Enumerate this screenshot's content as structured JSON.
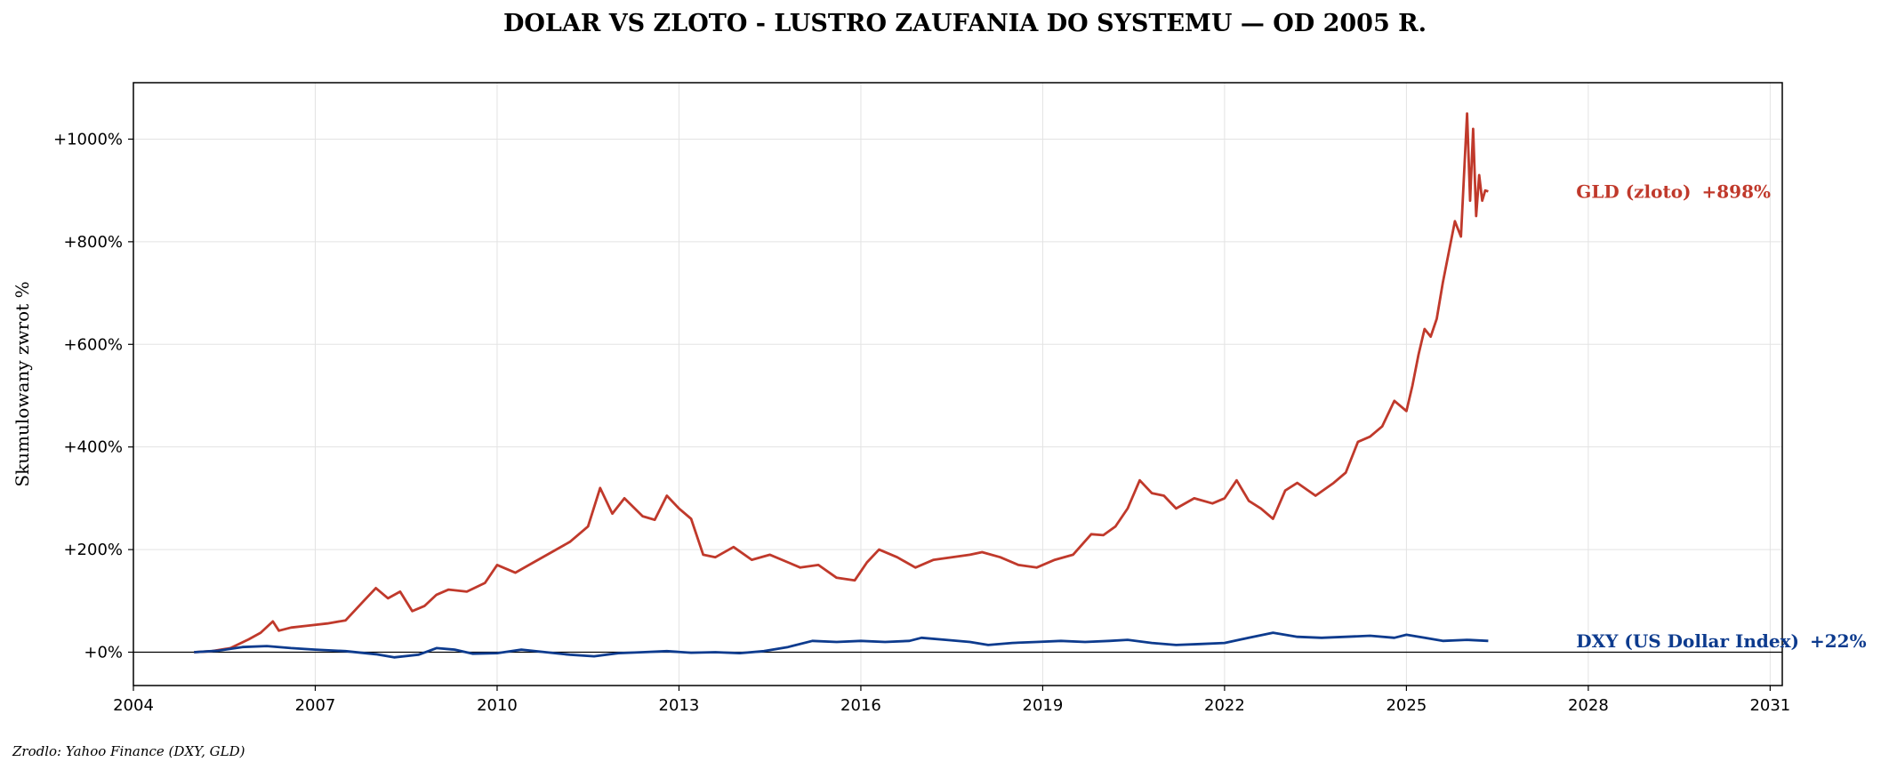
{
  "chart_data": {
    "type": "line",
    "title": "DOLAR VS ZLOTO - LUSTRO ZAUFANIA DO SYSTEMU — OD 2005 R.",
    "ylabel": "Skumulowany zwrot %",
    "xlabel": "",
    "xlim": [
      2004.0,
      2031.2
    ],
    "ylim": [
      -65,
      1110
    ],
    "x_ticks": [
      2004,
      2007,
      2010,
      2013,
      2016,
      2019,
      2022,
      2025,
      2028,
      2031
    ],
    "x_tick_labels": [
      "2004",
      "2007",
      "2010",
      "2013",
      "2016",
      "2019",
      "2022",
      "2025",
      "2028",
      "2031"
    ],
    "y_ticks": [
      0,
      200,
      400,
      600,
      800,
      1000
    ],
    "y_tick_labels": [
      "+0%",
      "+200%",
      "+400%",
      "+600%",
      "+800%",
      "+1000%"
    ],
    "grid": true,
    "zero_line": true,
    "source": "Zrodlo: Yahoo Finance (DXY, GLD)",
    "series": [
      {
        "name": "GLD (zloto)",
        "end_label": "+898%",
        "color": "#c0392b",
        "x": [
          2005.0,
          2005.3,
          2005.6,
          2005.9,
          2006.1,
          2006.3,
          2006.4,
          2006.6,
          2006.9,
          2007.2,
          2007.5,
          2007.8,
          2008.0,
          2008.2,
          2008.4,
          2008.6,
          2008.8,
          2009.0,
          2009.2,
          2009.5,
          2009.8,
          2010.0,
          2010.3,
          2010.6,
          2010.9,
          2011.2,
          2011.5,
          2011.7,
          2011.9,
          2012.1,
          2012.4,
          2012.6,
          2012.8,
          2013.0,
          2013.2,
          2013.4,
          2013.6,
          2013.9,
          2014.2,
          2014.5,
          2014.8,
          2015.0,
          2015.3,
          2015.6,
          2015.9,
          2016.1,
          2016.3,
          2016.6,
          2016.9,
          2017.2,
          2017.5,
          2017.8,
          2018.0,
          2018.3,
          2018.6,
          2018.9,
          2019.2,
          2019.5,
          2019.8,
          2020.0,
          2020.2,
          2020.4,
          2020.6,
          2020.8,
          2021.0,
          2021.2,
          2021.5,
          2021.8,
          2022.0,
          2022.2,
          2022.4,
          2022.6,
          2022.8,
          2023.0,
          2023.2,
          2023.5,
          2023.8,
          2024.0,
          2024.2,
          2024.4,
          2024.6,
          2024.8,
          2025.0,
          2025.1,
          2025.2,
          2025.3,
          2025.4,
          2025.5,
          2025.6,
          2025.7,
          2025.8,
          2025.9,
          2026.0,
          2026.05,
          2026.1,
          2026.15,
          2026.2,
          2026.25,
          2026.3,
          2026.35
        ],
        "values": [
          0,
          2,
          8,
          25,
          38,
          60,
          42,
          48,
          52,
          56,
          62,
          100,
          125,
          105,
          118,
          80,
          90,
          112,
          122,
          118,
          135,
          170,
          155,
          175,
          195,
          215,
          245,
          320,
          270,
          300,
          265,
          258,
          305,
          280,
          260,
          190,
          185,
          205,
          180,
          190,
          175,
          165,
          170,
          145,
          140,
          175,
          200,
          185,
          165,
          180,
          185,
          190,
          195,
          185,
          170,
          165,
          180,
          190,
          230,
          228,
          245,
          280,
          335,
          310,
          305,
          280,
          300,
          290,
          300,
          335,
          295,
          280,
          260,
          315,
          330,
          305,
          330,
          350,
          410,
          420,
          440,
          490,
          470,
          520,
          580,
          630,
          615,
          650,
          720,
          780,
          840,
          810,
          1050,
          880,
          1020,
          850,
          930,
          880,
          900,
          898
        ]
      },
      {
        "name": "DXY (US Dollar Index)",
        "end_label": "+22%",
        "color": "#0d3b8e",
        "x": [
          2005.0,
          2005.4,
          2005.8,
          2006.2,
          2006.6,
          2007.0,
          2007.5,
          2008.0,
          2008.3,
          2008.7,
          2009.0,
          2009.3,
          2009.6,
          2010.0,
          2010.4,
          2010.8,
          2011.2,
          2011.6,
          2012.0,
          2012.4,
          2012.8,
          2013.2,
          2013.6,
          2014.0,
          2014.4,
          2014.8,
          2015.2,
          2015.6,
          2016.0,
          2016.4,
          2016.8,
          2017.0,
          2017.4,
          2017.8,
          2018.1,
          2018.5,
          2018.9,
          2019.3,
          2019.7,
          2020.1,
          2020.4,
          2020.8,
          2021.2,
          2021.6,
          2022.0,
          2022.4,
          2022.8,
          2023.2,
          2023.6,
          2024.0,
          2024.4,
          2024.8,
          2025.0,
          2025.3,
          2025.6,
          2026.0,
          2026.35
        ],
        "values": [
          0,
          3,
          10,
          12,
          8,
          5,
          2,
          -4,
          -10,
          -5,
          8,
          5,
          -3,
          -2,
          5,
          0,
          -5,
          -8,
          -2,
          0,
          2,
          -1,
          0,
          -2,
          2,
          10,
          22,
          20,
          22,
          20,
          22,
          28,
          24,
          20,
          14,
          18,
          20,
          22,
          20,
          22,
          24,
          18,
          14,
          16,
          18,
          28,
          38,
          30,
          28,
          30,
          32,
          28,
          34,
          28,
          22,
          24,
          22
        ]
      }
    ]
  }
}
